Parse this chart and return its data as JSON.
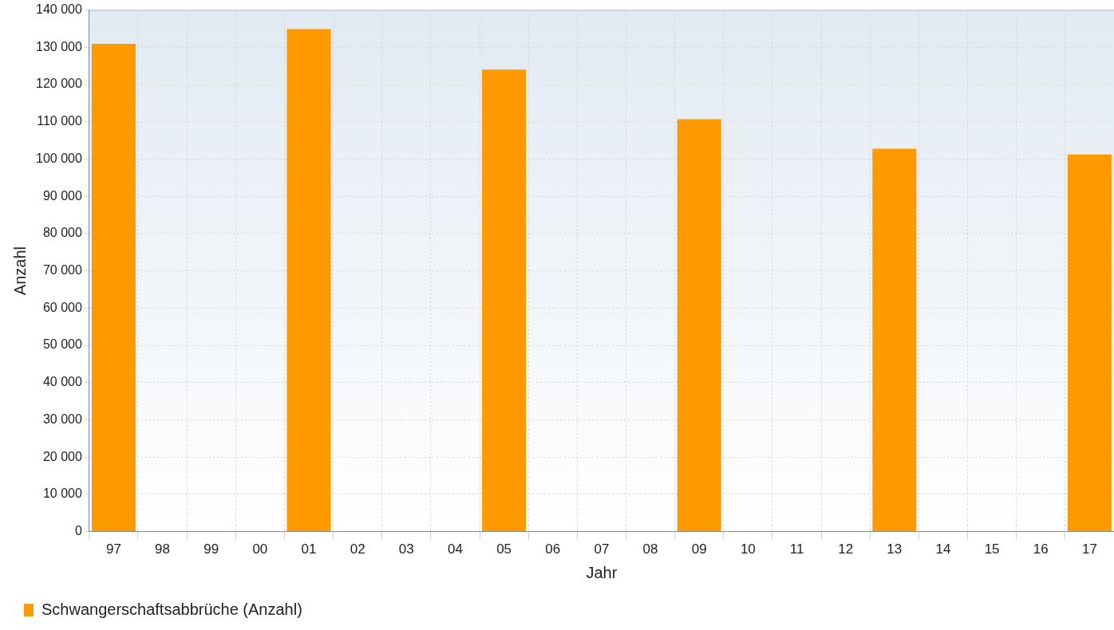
{
  "chart_data": {
    "type": "bar",
    "xlabel": "Jahr",
    "ylabel": "Anzahl",
    "categories": [
      "97",
      "98",
      "99",
      "00",
      "01",
      "02",
      "03",
      "04",
      "05",
      "06",
      "07",
      "08",
      "09",
      "10",
      "11",
      "12",
      "13",
      "14",
      "15",
      "16",
      "17"
    ],
    "series": [
      {
        "name": "Schwangerschaftsabbrüche (Anzahl)",
        "color": "#ff9900",
        "values": [
          130900,
          null,
          null,
          null,
          134900,
          null,
          null,
          null,
          124000,
          null,
          null,
          null,
          110700,
          null,
          null,
          null,
          102800,
          null,
          null,
          null,
          101200
        ]
      }
    ],
    "ylim": [
      0,
      140000
    ],
    "yticks": [
      {
        "value": 0,
        "label": "0"
      },
      {
        "value": 10000,
        "label": "10 000"
      },
      {
        "value": 20000,
        "label": "20 000"
      },
      {
        "value": 30000,
        "label": "30 000"
      },
      {
        "value": 40000,
        "label": "40 000"
      },
      {
        "value": 50000,
        "label": "50 000"
      },
      {
        "value": 60000,
        "label": "60 000"
      },
      {
        "value": 70000,
        "label": "70 000"
      },
      {
        "value": 80000,
        "label": "80 000"
      },
      {
        "value": 90000,
        "label": "90 000"
      },
      {
        "value": 100000,
        "label": "100 000"
      },
      {
        "value": 110000,
        "label": "110 000"
      },
      {
        "value": 120000,
        "label": "120 000"
      },
      {
        "value": 130000,
        "label": "130 000"
      },
      {
        "value": 140000,
        "label": "140 000"
      }
    ],
    "grid": true,
    "legend": "bottom left"
  }
}
